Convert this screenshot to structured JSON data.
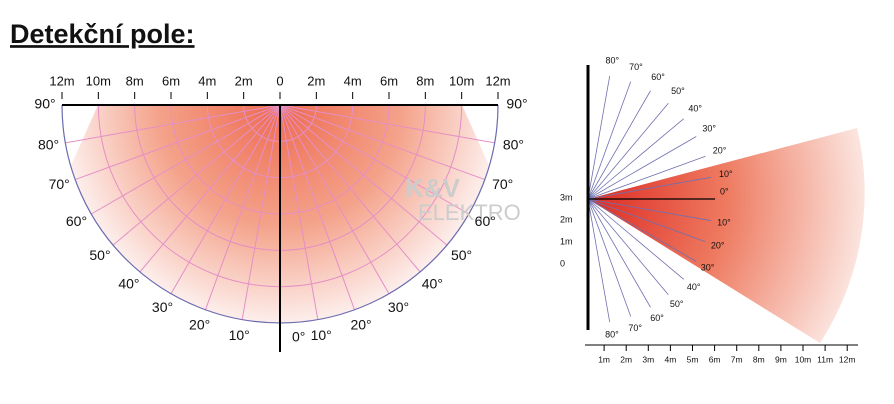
{
  "title": "Detekční pole:",
  "top_view": {
    "distance_labels": [
      "12m",
      "10m",
      "8m",
      "6m",
      "4m",
      "2m",
      "0",
      "2m",
      "4m",
      "6m",
      "8m",
      "10m",
      "12m"
    ],
    "left_angle_labels": [
      "90°",
      "80°",
      "70°",
      "60°",
      "50°",
      "40°",
      "30°",
      "20°",
      "10°"
    ],
    "bottom_angle_label": "0°",
    "right_angle_labels": [
      "10°",
      "20°",
      "30°",
      "40°",
      "50°",
      "60°",
      "70°",
      "80°",
      "90°"
    ]
  },
  "watermark": {
    "line1": "K&V",
    "line2": "ELEKTRO"
  },
  "side_view": {
    "upper_angle_labels": [
      "80°",
      "70°",
      "60°",
      "50°",
      "40°",
      "30°",
      "20°",
      "10°"
    ],
    "horizontal_label": "0°",
    "lower_angle_labels": [
      "10°",
      "20°",
      "30°",
      "40°",
      "50°",
      "60°",
      "70°",
      "80°"
    ],
    "height_labels": [
      "3m",
      "2m",
      "1m",
      "0"
    ],
    "distance_labels": [
      "1m",
      "2m",
      "3m",
      "4m",
      "5m",
      "6m",
      "7m",
      "8m",
      "9m",
      "10m",
      "11m",
      "12m"
    ]
  }
}
